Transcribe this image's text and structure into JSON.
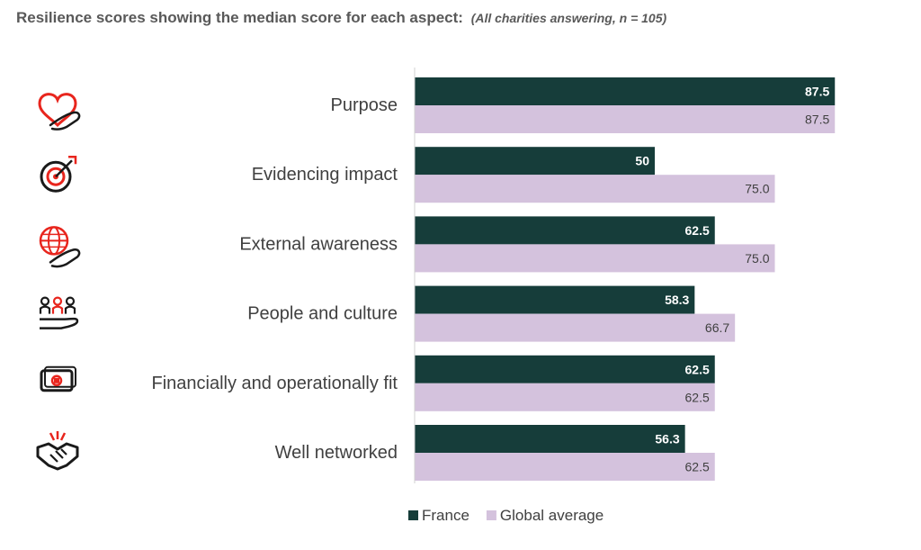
{
  "title": "Resilience scores showing the median score for each aspect:",
  "subtitle": "(All charities answering, n = 105)",
  "colors": {
    "france": "#163d3a",
    "global": "#d4c2dd",
    "icon": "#e8251d",
    "icon_dark": "#1a1a1a"
  },
  "icons": [
    "heart-hand-icon",
    "target-arrow-icon",
    "globe-hand-icon",
    "people-hand-icon",
    "money-icon",
    "handshake-icon"
  ],
  "chart_data": {
    "type": "bar",
    "orientation": "horizontal",
    "categories": [
      "Purpose",
      "Evidencing impact",
      "External awareness",
      "People and culture",
      "Financially and operationally fit",
      "Well networked"
    ],
    "series": [
      {
        "name": "France",
        "values": [
          87.5,
          50,
          62.5,
          58.3,
          62.5,
          56.3
        ],
        "labels": [
          "87.5",
          "50",
          "62.5",
          "58.3",
          "62.5",
          "56.3"
        ]
      },
      {
        "name": "Global average",
        "values": [
          87.5,
          75.0,
          75.0,
          66.7,
          62.5,
          62.5
        ],
        "labels": [
          "87.5",
          "75.0",
          "75.0",
          "66.7",
          "62.5",
          "62.5"
        ]
      }
    ],
    "xlim": [
      0,
      100
    ],
    "legend": "bottom",
    "grid": false
  }
}
